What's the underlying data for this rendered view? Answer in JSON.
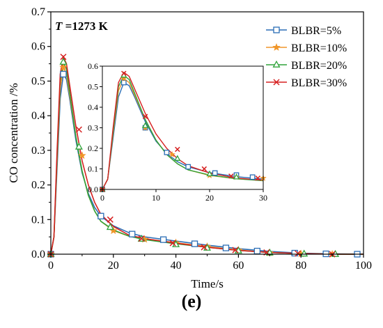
{
  "chart_data": {
    "type": "line",
    "annotation": {
      "italic": "T",
      "rest": " =1273 K"
    },
    "xlabel": "Time/s",
    "ylabel": "CO concentration /%",
    "xlim": [
      0,
      100
    ],
    "ylim": [
      0,
      0.7
    ],
    "xticks": [
      0,
      20,
      40,
      60,
      80,
      100
    ],
    "yticks": [
      0.0,
      0.1,
      0.2,
      0.3,
      0.4,
      0.5,
      0.6,
      0.7
    ],
    "xtick_labels": [
      "0",
      "20",
      "40",
      "60",
      "80",
      "100"
    ],
    "ytick_labels": [
      "0.0",
      "0.1",
      "0.2",
      "0.3",
      "0.4",
      "0.5",
      "0.6",
      "0.7"
    ],
    "legend_position": "top-right",
    "series": [
      {
        "name": "BLBR=5%",
        "color": "#2a6db5",
        "marker": "square",
        "curve": [
          [
            0,
            0
          ],
          [
            1,
            0.05
          ],
          [
            2,
            0.25
          ],
          [
            3,
            0.45
          ],
          [
            4,
            0.52
          ],
          [
            5,
            0.505
          ],
          [
            6,
            0.45
          ],
          [
            8,
            0.33
          ],
          [
            10,
            0.235
          ],
          [
            12,
            0.175
          ],
          [
            14,
            0.135
          ],
          [
            16,
            0.11
          ],
          [
            20,
            0.082
          ],
          [
            25,
            0.062
          ],
          [
            30,
            0.05
          ],
          [
            40,
            0.038
          ],
          [
            50,
            0.026
          ],
          [
            60,
            0.016
          ],
          [
            70,
            0.008
          ],
          [
            80,
            0.003
          ],
          [
            90,
            0.001
          ],
          [
            100,
            0.0
          ]
        ],
        "markers": [
          [
            0,
            0
          ],
          [
            4,
            0.52
          ],
          [
            16,
            0.11
          ],
          [
            26,
            0.058
          ],
          [
            36,
            0.042
          ],
          [
            46,
            0.03
          ],
          [
            56,
            0.018
          ],
          [
            66,
            0.009
          ],
          [
            78,
            0.003
          ],
          [
            88,
            0.001
          ],
          [
            98,
            0.0
          ]
        ]
      },
      {
        "name": "BLBR=10%",
        "color": "#f0962a",
        "marker": "star",
        "curve": [
          [
            0,
            0
          ],
          [
            1,
            0.05
          ],
          [
            2,
            0.27
          ],
          [
            3,
            0.48
          ],
          [
            4,
            0.54
          ],
          [
            5,
            0.52
          ],
          [
            6,
            0.46
          ],
          [
            8,
            0.34
          ],
          [
            10,
            0.24
          ],
          [
            12,
            0.17
          ],
          [
            14,
            0.125
          ],
          [
            16,
            0.095
          ],
          [
            20,
            0.068
          ],
          [
            25,
            0.052
          ],
          [
            30,
            0.044
          ],
          [
            40,
            0.033
          ],
          [
            50,
            0.022
          ],
          [
            60,
            0.012
          ],
          [
            70,
            0.005
          ],
          [
            80,
            0.002
          ],
          [
            90,
            0.0
          ],
          [
            100,
            0.0
          ]
        ],
        "markers": [
          [
            0,
            0
          ],
          [
            4,
            0.54
          ],
          [
            10,
            0.285
          ],
          [
            20,
            0.068
          ],
          [
            30,
            0.043
          ],
          [
            40,
            0.033
          ],
          [
            50,
            0.022
          ],
          [
            60,
            0.012
          ],
          [
            70,
            0.004
          ],
          [
            80,
            0.001
          ],
          [
            90,
            0.0
          ]
        ]
      },
      {
        "name": "BLBR=20%",
        "color": "#2fa33a",
        "marker": "triangle",
        "curve": [
          [
            0,
            0
          ],
          [
            1,
            0.05
          ],
          [
            2,
            0.28
          ],
          [
            3,
            0.5
          ],
          [
            4,
            0.555
          ],
          [
            5,
            0.535
          ],
          [
            6,
            0.47
          ],
          [
            8,
            0.34
          ],
          [
            10,
            0.24
          ],
          [
            12,
            0.17
          ],
          [
            14,
            0.125
          ],
          [
            16,
            0.095
          ],
          [
            20,
            0.07
          ],
          [
            25,
            0.052
          ],
          [
            30,
            0.042
          ],
          [
            40,
            0.03
          ],
          [
            50,
            0.02
          ],
          [
            60,
            0.011
          ],
          [
            70,
            0.005
          ],
          [
            80,
            0.002
          ],
          [
            90,
            0.0
          ],
          [
            100,
            0.0
          ]
        ],
        "markers": [
          [
            0,
            0
          ],
          [
            4,
            0.555
          ],
          [
            9,
            0.31
          ],
          [
            19,
            0.078
          ],
          [
            29,
            0.044
          ],
          [
            40,
            0.028
          ],
          [
            50,
            0.018
          ],
          [
            60,
            0.01
          ],
          [
            70,
            0.004
          ],
          [
            81,
            0.001
          ],
          [
            91,
            0.0
          ]
        ]
      },
      {
        "name": "BLBR=30%",
        "color": "#d62020",
        "marker": "x",
        "curve": [
          [
            0,
            0
          ],
          [
            1,
            0.05
          ],
          [
            2,
            0.3
          ],
          [
            3,
            0.52
          ],
          [
            4,
            0.57
          ],
          [
            5,
            0.55
          ],
          [
            6,
            0.49
          ],
          [
            8,
            0.37
          ],
          [
            10,
            0.27
          ],
          [
            12,
            0.2
          ],
          [
            14,
            0.15
          ],
          [
            16,
            0.115
          ],
          [
            20,
            0.08
          ],
          [
            25,
            0.055
          ],
          [
            30,
            0.045
          ],
          [
            40,
            0.032
          ],
          [
            50,
            0.02
          ],
          [
            60,
            0.011
          ],
          [
            70,
            0.005
          ],
          [
            80,
            0.002
          ],
          [
            90,
            0.0
          ],
          [
            100,
            0.0
          ]
        ],
        "markers": [
          [
            0,
            0
          ],
          [
            4,
            0.57
          ],
          [
            9,
            0.36
          ],
          [
            19,
            0.1
          ],
          [
            29,
            0.045
          ],
          [
            39,
            0.032
          ],
          [
            49,
            0.02
          ],
          [
            59,
            0.012
          ],
          [
            69,
            0.005
          ],
          [
            79,
            0.002
          ],
          [
            90,
            0.0
          ]
        ]
      }
    ],
    "inset": {
      "xlim": [
        0,
        30
      ],
      "ylim": [
        0,
        0.6
      ],
      "xticks": [
        0,
        10,
        20,
        30
      ],
      "yticks": [
        0.0,
        0.1,
        0.2,
        0.3,
        0.4,
        0.5,
        0.6
      ],
      "xtick_labels": [
        "0",
        "10",
        "20",
        "30"
      ],
      "ytick_labels": [
        "0.0",
        "0.1",
        "0.2",
        "0.3",
        "0.4",
        "0.5",
        "0.6"
      ],
      "markers": [
        [
          [
            0,
            0
          ],
          [
            4,
            0.52
          ],
          [
            8,
            0.3
          ],
          [
            12,
            0.18
          ],
          [
            16,
            0.11
          ],
          [
            21,
            0.08
          ],
          [
            25,
            0.07
          ],
          [
            28,
            0.06
          ]
        ],
        [
          [
            0,
            0
          ],
          [
            4,
            0.54
          ],
          [
            8,
            0.3
          ],
          [
            13,
            0.17
          ],
          [
            20,
            0.068
          ],
          [
            25,
            0.06
          ],
          [
            30,
            0.055
          ]
        ],
        [
          [
            0,
            0
          ],
          [
            4,
            0.555
          ],
          [
            8,
            0.31
          ],
          [
            14,
            0.15
          ],
          [
            20,
            0.075
          ],
          [
            25,
            0.06
          ]
        ],
        [
          [
            0,
            0
          ],
          [
            4,
            0.565
          ],
          [
            8,
            0.355
          ],
          [
            14,
            0.195
          ],
          [
            19,
            0.1
          ],
          [
            24,
            0.065
          ],
          [
            29,
            0.055
          ]
        ]
      ]
    }
  },
  "panel_label": "(e)"
}
